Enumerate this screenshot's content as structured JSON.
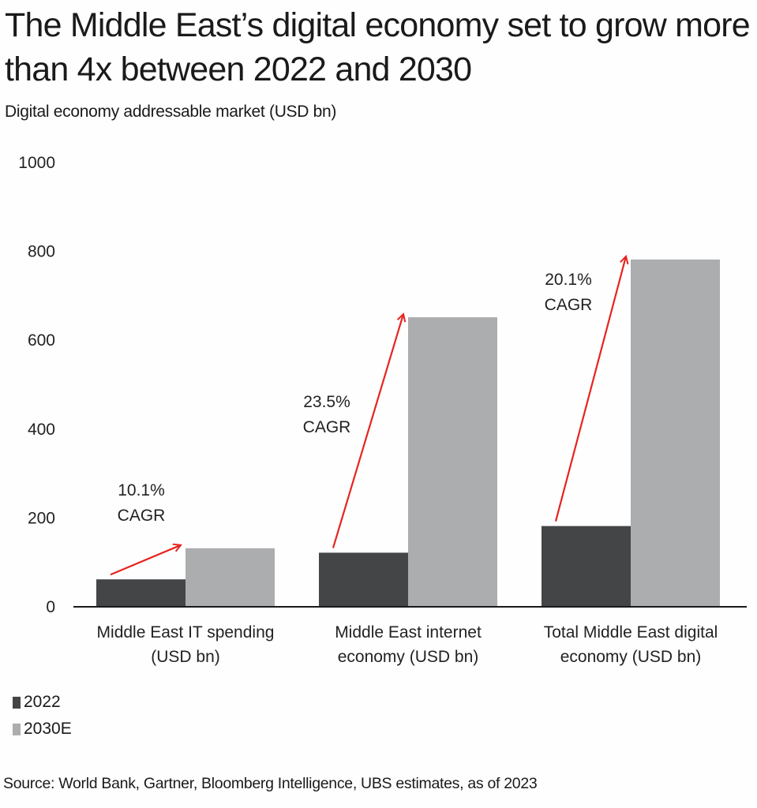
{
  "chart_data": {
    "type": "bar",
    "title": "The Middle East’s digital economy set to grow more than 4x between 2022 and 2030",
    "subtitle": "Digital economy addressable market (USD bn)",
    "xlabel": "",
    "ylabel": "",
    "ylim": [
      0,
      1000
    ],
    "yticks": [
      0,
      200,
      400,
      600,
      800,
      1000
    ],
    "grid": false,
    "categories": [
      [
        "Middle East IT spending",
        "(USD bn)"
      ],
      [
        "Middle East internet",
        "economy (USD bn)"
      ],
      [
        "Total Middle East digital",
        "economy (USD bn)"
      ]
    ],
    "series": [
      {
        "name": "2022",
        "color": "#444547",
        "values": [
          60,
          120,
          180
        ]
      },
      {
        "name": "2030E",
        "color": "#acadaf",
        "values": [
          130,
          650,
          780
        ]
      }
    ],
    "annotations": [
      {
        "category": 0,
        "lines": [
          "10.1%",
          "CAGR"
        ],
        "arrow_color": "#e8231f"
      },
      {
        "category": 1,
        "lines": [
          "23.5%",
          "CAGR"
        ],
        "arrow_color": "#e8231f"
      },
      {
        "category": 2,
        "lines": [
          "20.1%",
          "CAGR"
        ],
        "arrow_color": "#e8231f"
      }
    ],
    "legend_position": "bottom-left",
    "source": "Source: World Bank, Gartner, Bloomberg Intelligence, UBS estimates, as of 2023"
  }
}
